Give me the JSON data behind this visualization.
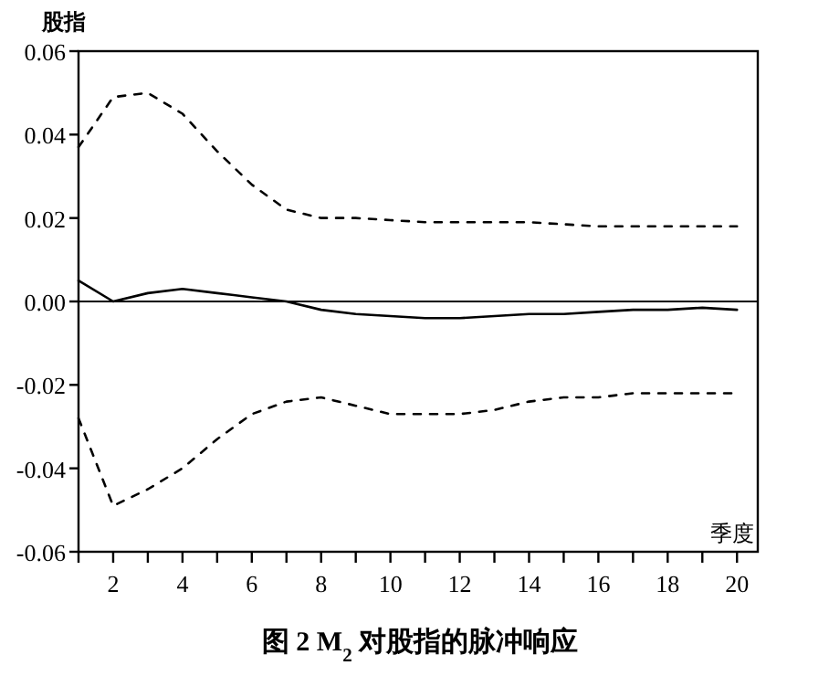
{
  "chart_data": {
    "type": "line",
    "title": "图 2 M$_{2}$ 对股指的脉冲响应",
    "ylabel": "股指",
    "xlabel": "季度",
    "x": [
      1,
      2,
      3,
      4,
      5,
      6,
      7,
      8,
      9,
      10,
      11,
      12,
      13,
      14,
      15,
      16,
      17,
      18,
      19,
      20
    ],
    "series": [
      {
        "color": "#000000",
        "line_style": "solid",
        "values": [
          0.005,
          0.0,
          0.002,
          0.003,
          0.002,
          0.001,
          0.0,
          -0.002,
          -0.003,
          -0.0035,
          -0.004,
          -0.004,
          -0.0035,
          -0.003,
          -0.003,
          -0.0025,
          -0.002,
          -0.002,
          -0.0015,
          -0.002
        ]
      },
      {
        "color": "#000000",
        "line_style": "dashed",
        "values": [
          0.037,
          0.049,
          0.05,
          0.045,
          0.036,
          0.028,
          0.022,
          0.02,
          0.02,
          0.0195,
          0.019,
          0.019,
          0.019,
          0.019,
          0.0185,
          0.018,
          0.018,
          0.018,
          0.018,
          0.018
        ]
      },
      {
        "color": "#000000",
        "line_style": "dashed",
        "values": [
          -0.028,
          -0.049,
          -0.045,
          -0.04,
          -0.033,
          -0.027,
          -0.024,
          -0.023,
          -0.025,
          -0.027,
          -0.027,
          -0.027,
          -0.026,
          -0.024,
          -0.023,
          -0.023,
          -0.022,
          -0.022,
          -0.022,
          -0.022
        ]
      }
    ],
    "xlim": [
      1,
      20.6
    ],
    "ylim": [
      -0.06,
      0.06
    ],
    "xticks": [
      {
        "value": 1,
        "label": null
      },
      2,
      {
        "value": 3,
        "label": null
      },
      4,
      {
        "value": 5,
        "label": null
      },
      6,
      {
        "value": 7,
        "label": null
      },
      8,
      {
        "value": 9,
        "label": null
      },
      10,
      {
        "value": 11,
        "label": null
      },
      12,
      {
        "value": 13,
        "label": null
      },
      14,
      {
        "value": 15,
        "label": null
      },
      16,
      {
        "value": 17,
        "label": null
      },
      18,
      {
        "value": 19,
        "label": null
      },
      20
    ],
    "yticks": [
      {
        "value": -0.06,
        "label": "-0.06"
      },
      {
        "value": -0.04,
        "label": "-0.04"
      },
      {
        "value": -0.02,
        "label": "-0.02"
      },
      {
        "value": 0,
        "label": "0.00"
      },
      {
        "value": 0.02,
        "label": "0.02"
      },
      {
        "value": 0.04,
        "label": "0.04"
      },
      {
        "value": 0.06,
        "label": "0.06"
      }
    ],
    "ref_lines": [
      {
        "axis": "y",
        "value": 0,
        "color": "#000000",
        "line_style": "solid"
      }
    ],
    "grid": false
  }
}
